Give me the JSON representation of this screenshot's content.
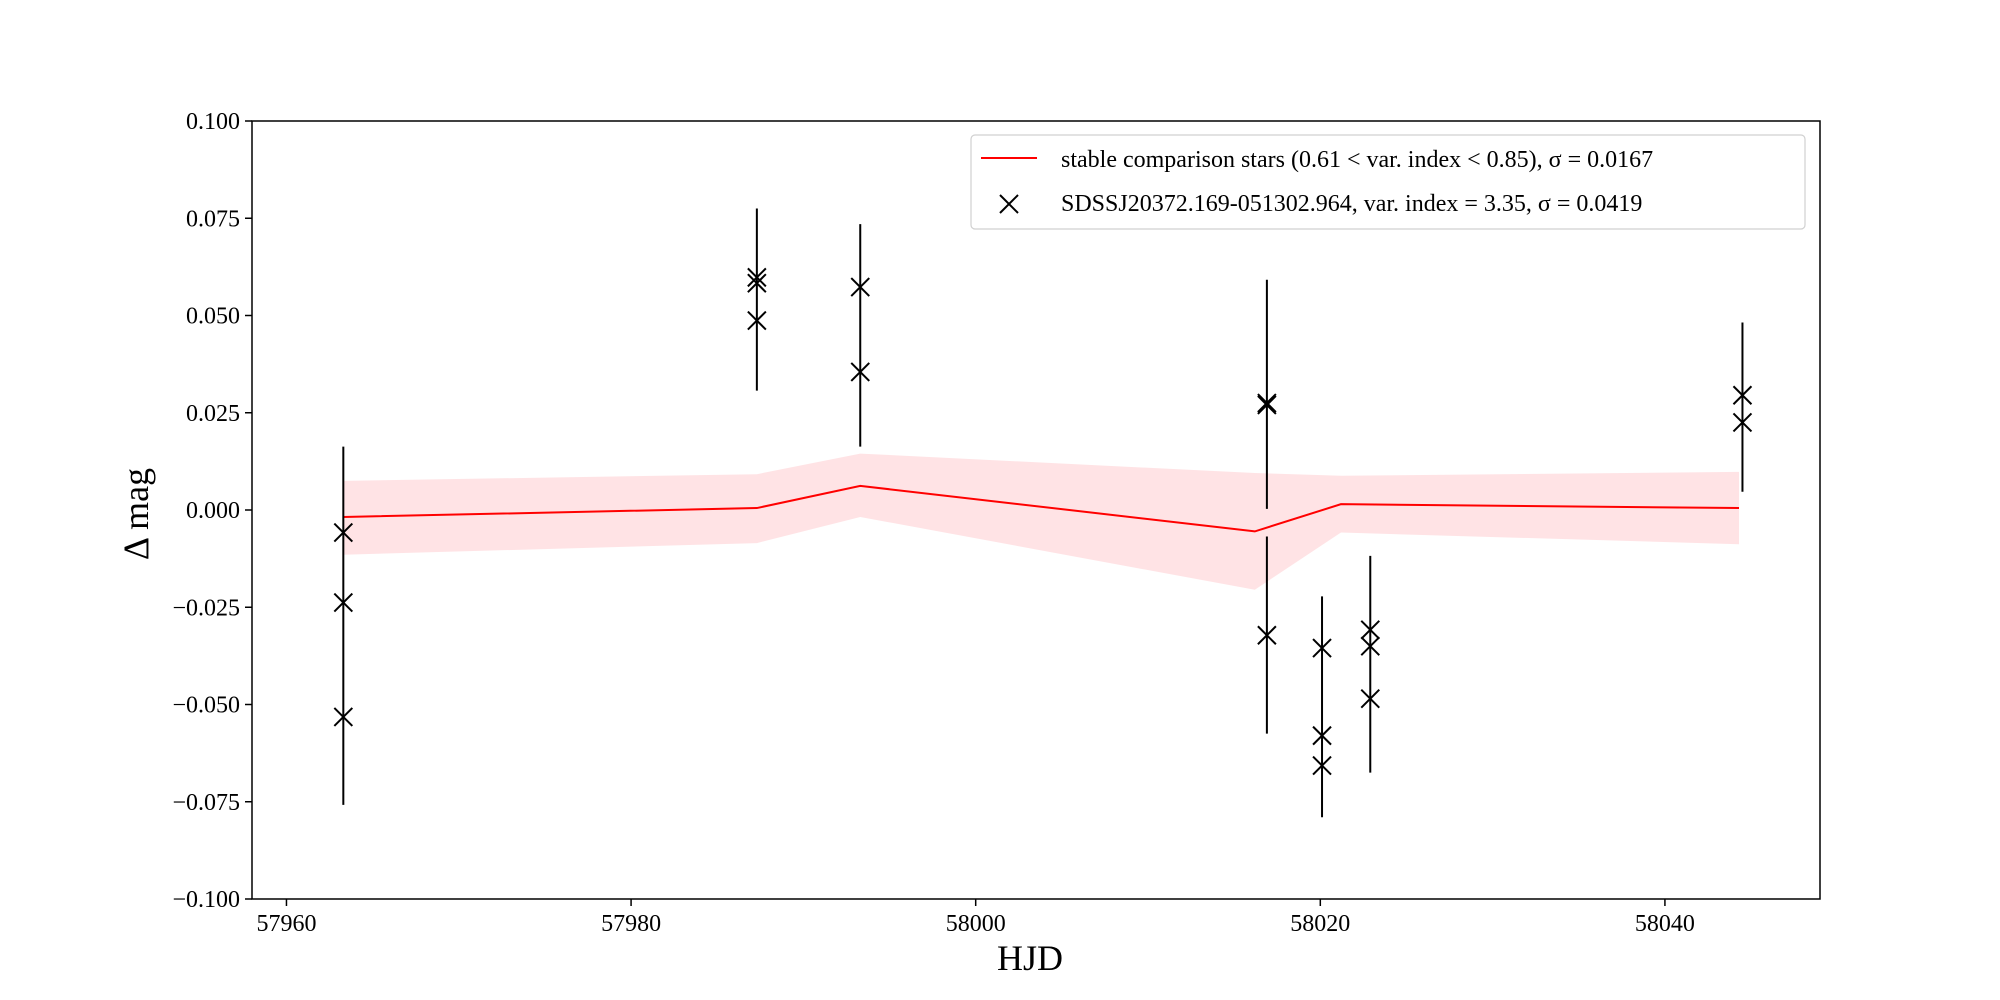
{
  "chart_data": {
    "type": "line",
    "xlabel": "HJD",
    "ylabel": "Δ mag",
    "xlim": [
      57958.0,
      58049.0
    ],
    "ylim": [
      -0.1,
      0.1
    ],
    "x_ticks": [
      57960,
      57980,
      58000,
      58020,
      58040
    ],
    "x_tick_labels": [
      "57960",
      "57980",
      "58000",
      "58020",
      "58040"
    ],
    "y_ticks": [
      -0.1,
      -0.075,
      -0.05,
      -0.025,
      0.0,
      0.025,
      0.05,
      0.075,
      0.1
    ],
    "y_tick_labels": [
      "−0.100",
      "−0.075",
      "−0.050",
      "−0.025",
      "0.000",
      "0.025",
      "0.050",
      "0.075",
      "0.100"
    ],
    "grid": false,
    "legend_position": "top-right",
    "comparison": {
      "name": "stable comparison stars (0.61 < var. index < 0.85), σ = 0.0167",
      "color": "#ff0000",
      "band_color": "#ffc0c5",
      "x": [
        57963.3,
        57987.3,
        57993.3,
        58016.2,
        58021.2,
        58044.3
      ],
      "y": [
        -0.0018,
        0.0005,
        0.0062,
        -0.0055,
        0.0015,
        0.0005
      ],
      "band_lower": [
        -0.0115,
        -0.0085,
        -0.0018,
        -0.0205,
        -0.0058,
        -0.0088
      ],
      "band_upper": [
        0.0075,
        0.0092,
        0.0145,
        0.0095,
        0.0088,
        0.0098
      ]
    },
    "target": {
      "name": "SDSSJ20372.169-051302.964, var. index = 3.35, σ  = 0.0419",
      "color": "#000000",
      "points": [
        {
          "x": 57963.3,
          "y": -0.0058
        },
        {
          "x": 57963.3,
          "y": -0.0238
        },
        {
          "x": 57963.3,
          "y": -0.0532
        },
        {
          "x": 57987.3,
          "y": 0.0598
        },
        {
          "x": 57987.3,
          "y": 0.0583
        },
        {
          "x": 57987.3,
          "y": 0.0487
        },
        {
          "x": 57993.3,
          "y": 0.0573
        },
        {
          "x": 57993.3,
          "y": 0.0355
        },
        {
          "x": 58016.9,
          "y": 0.0275
        },
        {
          "x": 58016.9,
          "y": 0.027
        },
        {
          "x": 58016.9,
          "y": -0.0322
        },
        {
          "x": 58020.1,
          "y": -0.0355
        },
        {
          "x": 58020.1,
          "y": -0.058
        },
        {
          "x": 58020.1,
          "y": -0.0657
        },
        {
          "x": 58022.9,
          "y": -0.0308
        },
        {
          "x": 58022.9,
          "y": -0.035
        },
        {
          "x": 58022.9,
          "y": -0.0485
        },
        {
          "x": 58044.5,
          "y": 0.0295
        },
        {
          "x": 58044.5,
          "y": 0.0225
        }
      ],
      "error_bars": [
        {
          "x": 57963.3,
          "low": -0.0758,
          "high": 0.0163
        },
        {
          "x": 57987.3,
          "low": 0.0307,
          "high": 0.0775
        },
        {
          "x": 57993.3,
          "low": 0.0163,
          "high": 0.0735
        },
        {
          "x": 58016.9,
          "low": 0.0003,
          "high": 0.0592
        },
        {
          "x": 58016.9,
          "low": -0.0575,
          "high": -0.0068
        },
        {
          "x": 58020.1,
          "low": -0.079,
          "high": -0.0222
        },
        {
          "x": 58022.9,
          "low": -0.0675,
          "high": -0.0118
        },
        {
          "x": 58044.5,
          "low": 0.0047,
          "high": 0.0482
        }
      ]
    }
  }
}
